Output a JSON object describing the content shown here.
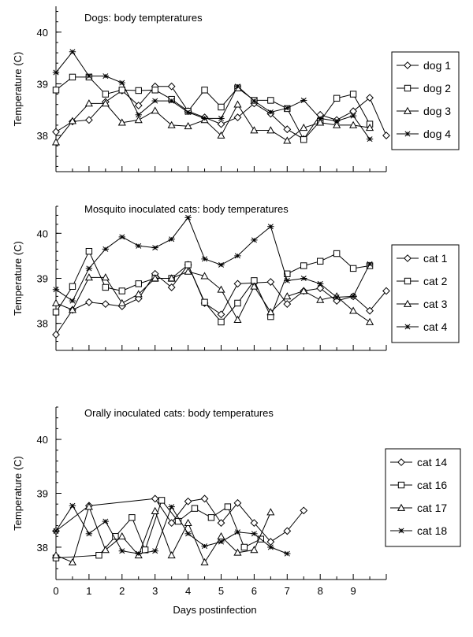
{
  "figure": {
    "xlabel": "Days postinfection"
  },
  "chart_data": [
    {
      "type": "line",
      "title": "Dogs:  body tempteratures",
      "ylabel": "Temperature (C)",
      "ylim": [
        37.3,
        40.5
      ],
      "xlim": [
        0,
        10
      ],
      "yticks": [
        38,
        39,
        40
      ],
      "xticks": [
        0,
        1,
        2,
        3,
        4,
        5,
        6,
        7,
        8,
        9
      ],
      "legend_position": "right",
      "series": [
        {
          "name": "dog 1",
          "marker": "diamond",
          "points": [
            [
              0,
              38.07
            ],
            [
              0.5,
              38.27
            ],
            [
              1,
              38.3
            ],
            [
              1.5,
              38.65
            ],
            [
              2,
              38.87
            ],
            [
              2.5,
              38.58
            ],
            [
              3,
              38.95
            ],
            [
              3.5,
              38.95
            ],
            [
              4,
              38.47
            ],
            [
              4.5,
              38.35
            ],
            [
              5,
              38.22
            ],
            [
              5.5,
              38.35
            ],
            [
              6,
              38.62
            ],
            [
              6.5,
              38.42
            ],
            [
              7,
              38.12
            ],
            [
              7.5,
              37.93
            ],
            [
              8,
              38.4
            ],
            [
              8.5,
              38.3
            ],
            [
              9,
              38.47
            ],
            [
              9.5,
              38.73
            ],
            [
              10,
              38.0
            ]
          ]
        },
        {
          "name": "dog 2",
          "marker": "square",
          "points": [
            [
              0,
              38.88
            ],
            [
              0.5,
              39.13
            ],
            [
              1,
              39.13
            ],
            [
              1.5,
              38.8
            ],
            [
              2,
              38.88
            ],
            [
              2.5,
              38.87
            ],
            [
              3,
              38.88
            ],
            [
              3.5,
              38.7
            ],
            [
              4,
              38.47
            ],
            [
              4.5,
              38.88
            ],
            [
              5,
              38.55
            ],
            [
              5.5,
              38.92
            ],
            [
              6,
              38.68
            ],
            [
              6.5,
              38.68
            ],
            [
              7,
              38.52
            ],
            [
              7.5,
              37.92
            ],
            [
              8,
              38.28
            ],
            [
              8.5,
              38.72
            ],
            [
              9,
              38.8
            ],
            [
              9.5,
              38.22
            ]
          ]
        },
        {
          "name": "dog 3",
          "marker": "triangle",
          "points": [
            [
              0,
              37.87
            ],
            [
              0.5,
              38.28
            ],
            [
              1,
              38.62
            ],
            [
              1.5,
              38.62
            ],
            [
              2,
              38.25
            ],
            [
              2.5,
              38.3
            ],
            [
              3,
              38.48
            ],
            [
              3.5,
              38.2
            ],
            [
              4,
              38.18
            ],
            [
              4.5,
              38.3
            ],
            [
              5,
              38.0
            ],
            [
              5.5,
              38.6
            ],
            [
              6,
              38.1
            ],
            [
              6.5,
              38.1
            ],
            [
              7,
              37.9
            ],
            [
              7.5,
              38.15
            ],
            [
              8,
              38.25
            ],
            [
              8.5,
              38.2
            ],
            [
              9,
              38.2
            ],
            [
              9.5,
              38.15
            ]
          ]
        },
        {
          "name": "dog 4",
          "marker": "asterisk",
          "points": [
            [
              0,
              39.22
            ],
            [
              0.5,
              39.62
            ],
            [
              1,
              39.15
            ],
            [
              1.5,
              39.15
            ],
            [
              2,
              39.02
            ],
            [
              2.5,
              38.4
            ],
            [
              3,
              38.67
            ],
            [
              3.5,
              38.67
            ],
            [
              4,
              38.45
            ],
            [
              4.5,
              38.33
            ],
            [
              5,
              38.33
            ],
            [
              5.5,
              38.95
            ],
            [
              6,
              38.67
            ],
            [
              6.5,
              38.45
            ],
            [
              7,
              38.53
            ],
            [
              7.5,
              38.68
            ],
            [
              8,
              38.33
            ],
            [
              8.5,
              38.28
            ],
            [
              9,
              38.38
            ],
            [
              9.5,
              37.93
            ]
          ]
        }
      ]
    },
    {
      "type": "line",
      "title": "Mosquito inoculated cats: body temperatures",
      "ylabel": "Temperature (C)",
      "ylim": [
        37.4,
        40.6
      ],
      "xlim": [
        0,
        10
      ],
      "yticks": [
        38,
        39,
        40
      ],
      "xticks": [
        0,
        1,
        2,
        3,
        4,
        5,
        6,
        7,
        8,
        9
      ],
      "legend_position": "right",
      "series": [
        {
          "name": "cat 1",
          "marker": "diamond",
          "points": [
            [
              0,
              37.75
            ],
            [
              0.5,
              38.3
            ],
            [
              1,
              38.47
            ],
            [
              1.5,
              38.43
            ],
            [
              2,
              38.38
            ],
            [
              2.5,
              38.55
            ],
            [
              3,
              39.1
            ],
            [
              3.5,
              38.8
            ],
            [
              4,
              39.3
            ],
            [
              4.5,
              38.45
            ],
            [
              5,
              38.2
            ],
            [
              5.5,
              38.88
            ],
            [
              6,
              38.9
            ],
            [
              6.5,
              38.92
            ],
            [
              7,
              38.43
            ],
            [
              7.5,
              38.72
            ],
            [
              8,
              38.78
            ],
            [
              8.5,
              38.5
            ],
            [
              9,
              38.6
            ],
            [
              9.5,
              38.28
            ],
            [
              10,
              38.72
            ]
          ]
        },
        {
          "name": "cat 2",
          "marker": "square",
          "points": [
            [
              0,
              38.25
            ],
            [
              0.5,
              38.82
            ],
            [
              1,
              39.6
            ],
            [
              1.5,
              38.8
            ],
            [
              2,
              38.72
            ],
            [
              2.5,
              38.88
            ],
            [
              3,
              39.0
            ],
            [
              3.5,
              39.0
            ],
            [
              4,
              39.3
            ],
            [
              4.5,
              38.47
            ],
            [
              5,
              38.03
            ],
            [
              5.5,
              38.45
            ],
            [
              6,
              38.95
            ],
            [
              6.5,
              38.15
            ],
            [
              7,
              39.1
            ],
            [
              7.5,
              39.28
            ],
            [
              8,
              39.38
            ],
            [
              8.5,
              39.55
            ],
            [
              9,
              39.22
            ],
            [
              9.5,
              39.28
            ]
          ]
        },
        {
          "name": "cat 3",
          "marker": "triangle",
          "points": [
            [
              0,
              38.45
            ],
            [
              0.5,
              38.3
            ],
            [
              1,
              39.02
            ],
            [
              1.5,
              39.02
            ],
            [
              2,
              38.45
            ],
            [
              2.5,
              38.65
            ],
            [
              3,
              39.0
            ],
            [
              3.5,
              39.0
            ],
            [
              4,
              39.15
            ],
            [
              4.5,
              39.05
            ],
            [
              5,
              38.75
            ],
            [
              5.5,
              38.08
            ],
            [
              6,
              38.82
            ],
            [
              6.5,
              38.25
            ],
            [
              7,
              38.6
            ],
            [
              7.5,
              38.72
            ],
            [
              8,
              38.52
            ],
            [
              8.5,
              38.6
            ],
            [
              9,
              38.28
            ],
            [
              9.5,
              38.03
            ]
          ]
        },
        {
          "name": "cat 4",
          "marker": "asterisk",
          "points": [
            [
              0,
              38.75
            ],
            [
              0.5,
              38.5
            ],
            [
              1,
              39.22
            ],
            [
              1.5,
              39.65
            ],
            [
              2,
              39.92
            ],
            [
              2.5,
              39.72
            ],
            [
              3,
              39.68
            ],
            [
              3.5,
              39.87
            ],
            [
              4,
              40.35
            ],
            [
              4.5,
              39.43
            ],
            [
              5,
              39.3
            ],
            [
              5.5,
              39.5
            ],
            [
              6,
              39.85
            ],
            [
              6.5,
              40.15
            ],
            [
              7,
              38.95
            ],
            [
              7.5,
              39.0
            ],
            [
              8,
              38.88
            ],
            [
              8.5,
              38.58
            ],
            [
              9,
              38.6
            ],
            [
              9.5,
              39.32
            ]
          ]
        }
      ]
    },
    {
      "type": "line",
      "title": "Orally inoculated cats: body temperatures",
      "ylabel": "Temperature (C)",
      "ylim": [
        37.4,
        40.6
      ],
      "xlim": [
        0,
        10
      ],
      "yticks": [
        38,
        39,
        40
      ],
      "xticks": [
        0,
        1,
        2,
        3,
        4,
        5,
        6,
        7,
        8,
        9
      ],
      "legend_position": "right",
      "series": [
        {
          "name": "cat 14",
          "marker": "diamond",
          "points": [
            [
              0,
              38.3
            ],
            [
              1,
              38.77
            ],
            [
              3,
              38.9
            ],
            [
              3.5,
              38.45
            ],
            [
              4,
              38.85
            ],
            [
              4.5,
              38.9
            ],
            [
              5,
              38.45
            ],
            [
              5.5,
              38.82
            ],
            [
              6,
              38.45
            ],
            [
              6.5,
              38.1
            ],
            [
              7,
              38.3
            ],
            [
              7.5,
              38.68
            ]
          ]
        },
        {
          "name": "cat 16",
          "marker": "square",
          "points": [
            [
              0,
              37.8
            ],
            [
              1.3,
              37.85
            ],
            [
              1.8,
              38.2
            ],
            [
              2.3,
              38.55
            ],
            [
              2.7,
              37.95
            ],
            [
              3.2,
              38.87
            ],
            [
              3.7,
              38.48
            ],
            [
              4.2,
              38.72
            ],
            [
              4.7,
              38.55
            ],
            [
              5.2,
              38.75
            ],
            [
              5.7,
              38.0
            ],
            [
              6.2,
              38.15
            ]
          ]
        },
        {
          "name": "cat 17",
          "marker": "triangle",
          "points": [
            [
              0,
              37.85
            ],
            [
              0.5,
              37.72
            ],
            [
              1,
              38.75
            ],
            [
              1.5,
              37.95
            ],
            [
              2,
              38.2
            ],
            [
              2.5,
              37.85
            ],
            [
              3,
              38.67
            ],
            [
              3.5,
              37.85
            ],
            [
              4,
              38.45
            ],
            [
              4.5,
              37.72
            ],
            [
              5,
              38.2
            ],
            [
              5.5,
              37.9
            ],
            [
              6,
              37.95
            ],
            [
              6.5,
              38.65
            ]
          ]
        },
        {
          "name": "cat 18",
          "marker": "asterisk",
          "points": [
            [
              0,
              38.3
            ],
            [
              0.5,
              38.77
            ],
            [
              1,
              38.25
            ],
            [
              1.5,
              38.48
            ],
            [
              2,
              37.93
            ],
            [
              2.5,
              37.88
            ],
            [
              3,
              37.93
            ],
            [
              3.5,
              38.75
            ],
            [
              4,
              38.25
            ],
            [
              4.5,
              38.02
            ],
            [
              5,
              38.1
            ],
            [
              5.5,
              38.28
            ],
            [
              6,
              38.25
            ],
            [
              6.5,
              38.0
            ],
            [
              7,
              37.88
            ]
          ]
        }
      ]
    }
  ]
}
